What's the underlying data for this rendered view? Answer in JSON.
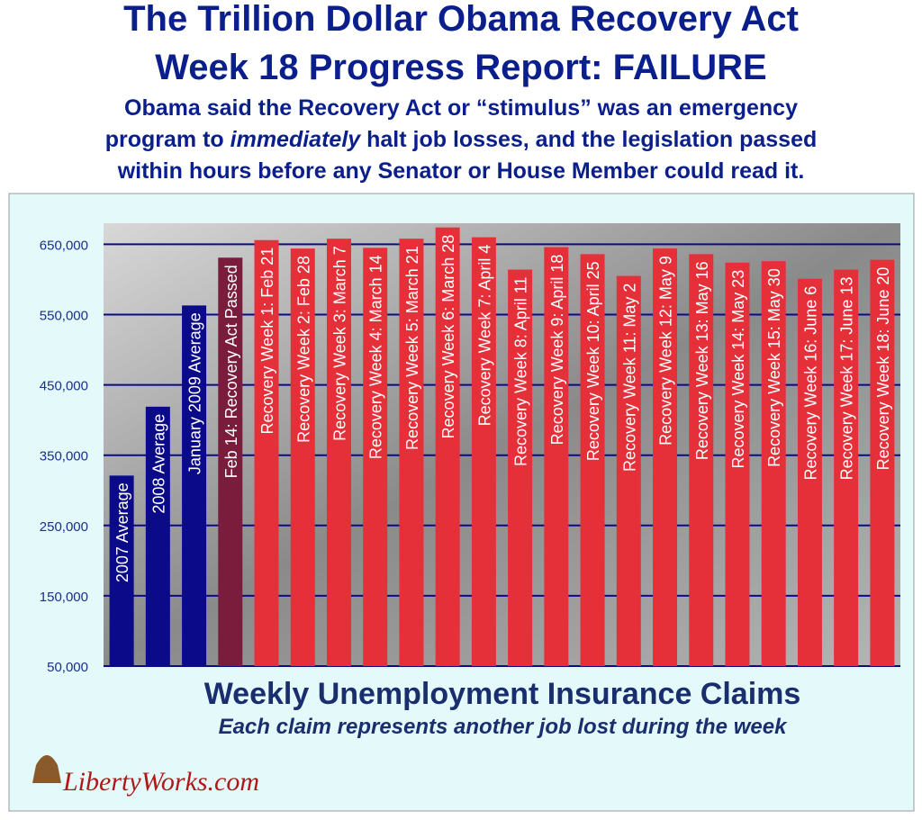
{
  "chart_data": {
    "type": "bar",
    "title": [
      "The Trillion Dollar Obama Recovery Act",
      "Week 18 Progress Report: FAILURE"
    ],
    "subtitle": [
      [
        "Obama said the Recovery Act or “stimulus” was an emergency"
      ],
      [
        "program to ",
        "immediately",
        " halt job losses, and the legislation passed"
      ],
      [
        "within hours before any Senator or House Member could read it."
      ]
    ],
    "caption": "Weekly Unemployment Insurance Claims",
    "subcaption": "Each claim represents another job lost during the week",
    "source": "LibertyWorks.com",
    "categories": [
      "2007 Average",
      "2008 Average",
      "January 2009 Average",
      "Feb 14: Recovery Act Passed",
      "Recovery Week 1: Feb 21",
      "Recovery Week 2: Feb 28",
      "Recovery Week 3: March 7",
      "Recovery Week 4: March 14",
      "Recovery Week 5: March 21",
      "Recovery Week 6: March 28",
      "Recovery Week 7: April 4",
      "Recovery Week 8: April 11",
      "Recovery Week 9: April 18",
      "Recovery Week 10: April 25",
      "Recovery Week 11: May 2",
      "Recovery Week 12: May 9",
      "Recovery Week 13: May 16",
      "Recovery Week 14: May 23",
      "Recovery Week 15: May 30",
      "Recovery Week 16: June 6",
      "Recovery Week 17: June 13",
      "Recovery Week 18: June 20"
    ],
    "values": [
      321000,
      419000,
      563000,
      631000,
      656000,
      644000,
      658000,
      645000,
      658000,
      674000,
      660000,
      614000,
      646000,
      636000,
      605000,
      644000,
      636000,
      624000,
      626000,
      601000,
      614000,
      628000
    ],
    "colors": [
      "#0b0b8a",
      "#0b0b8a",
      "#0b0b8a",
      "#7a1c3c",
      "#e5303a",
      "#e5303a",
      "#e5303a",
      "#e5303a",
      "#e5303a",
      "#e5303a",
      "#e5303a",
      "#e5303a",
      "#e5303a",
      "#e5303a",
      "#e5303a",
      "#e5303a",
      "#e5303a",
      "#e5303a",
      "#e5303a",
      "#e5303a",
      "#e5303a",
      "#e5303a"
    ],
    "ylim": [
      50000,
      680000
    ],
    "yticks": [
      {
        "value": 50000,
        "label": "50,000"
      },
      {
        "value": 150000,
        "label": "150,000"
      },
      {
        "value": 250000,
        "label": "250,000"
      },
      {
        "value": 350000,
        "label": "350,000"
      },
      {
        "value": 450000,
        "label": "450,000"
      },
      {
        "value": 550000,
        "label": "550,000"
      },
      {
        "value": 650000,
        "label": "650,000"
      }
    ],
    "grid": true
  }
}
